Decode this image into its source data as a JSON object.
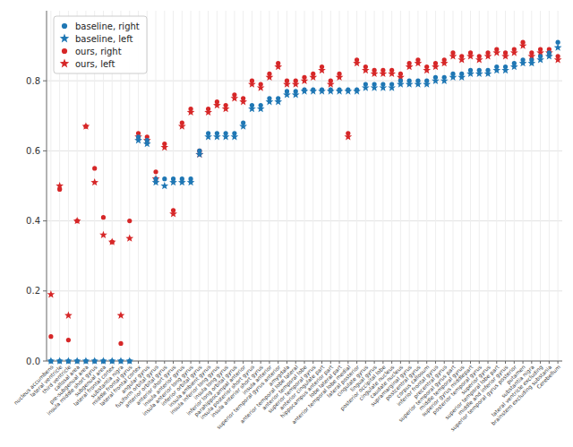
{
  "chart_data": {
    "type": "scatter",
    "categories": [
      "nucleus accumbens",
      "lateral ventricle",
      "third ventricle",
      "callosal area",
      "pre-subgenual area",
      "insula middle short gyrus",
      "subgenual area",
      "lateral frontal cortex",
      "substantia nigra",
      "middle frontal gyrus",
      "lateral frontal cortex",
      "angular gyrus",
      "fusiform orbital gyrus",
      "anterior orbital gyrus",
      "anterior short gyrus",
      "insula anterior gyrus",
      "insula anterior long gyrus",
      "inferior orbital gyrus",
      "insula ambient gyrus",
      "insula inferior long gyrus",
      "insula long gyrus",
      "inferior long orbital gyrus",
      "parahippocampal anterior",
      "insula posterior short gyrus",
      "insula anterior short gyrus",
      "insula anterior",
      "superior temporal gyrus anterior",
      "amygdala",
      "anterior temporal lobe lateral",
      "anterior temporal lobe",
      "superior temporal gyrus",
      "anterior cingulate part",
      "hippocampus anterior part",
      "lobe lateral part",
      "anterior temporal lobe medial",
      "lateral posterior",
      "cingulate gyrus",
      "lingual gyrus",
      "posterior occipital lobe",
      "cingulate nucleus",
      "caudate nucleus",
      "supramarginal gyrus",
      "postcentral gyrus",
      "corpus callosum",
      "inferior frontal gyrus",
      "precentral gyrus",
      "superior temporal gyrus part",
      "middle temporal gyrus",
      "superior gyrus middlepart",
      "posterior temporal gyrus",
      "superior gyrus",
      "superior temporal lobe part",
      "middle and inferior gyrus",
      "superior temporal gyrus posterior",
      "putamen",
      "substantia nigra",
      "lateral ventricle excluding",
      "brainstem excluding substania",
      "Cerebellum"
    ],
    "series": [
      {
        "name": "baseline, right",
        "color": "#1f77b4",
        "marker": "circle",
        "values": [
          0.0,
          0.0,
          0.0,
          0.0,
          0.0,
          0.0,
          0.0,
          0.0,
          0.0,
          0.0,
          0.64,
          0.63,
          0.52,
          0.52,
          0.52,
          0.52,
          0.52,
          0.6,
          0.65,
          0.65,
          0.65,
          0.65,
          0.68,
          0.73,
          0.73,
          0.75,
          0.75,
          0.77,
          0.77,
          0.775,
          0.775,
          0.775,
          0.775,
          0.775,
          0.775,
          0.775,
          0.79,
          0.79,
          0.79,
          0.79,
          0.8,
          0.8,
          0.8,
          0.8,
          0.81,
          0.81,
          0.82,
          0.82,
          0.83,
          0.83,
          0.83,
          0.84,
          0.84,
          0.85,
          0.86,
          0.86,
          0.87,
          0.88,
          0.91
        ]
      },
      {
        "name": "baseline, left",
        "color": "#1f77b4",
        "marker": "star",
        "values": [
          0.0,
          0.0,
          0.0,
          0.0,
          0.0,
          0.0,
          0.0,
          0.0,
          0.0,
          0.0,
          0.63,
          0.62,
          0.51,
          0.5,
          0.51,
          0.51,
          0.51,
          0.59,
          0.64,
          0.64,
          0.64,
          0.64,
          0.67,
          0.72,
          0.72,
          0.74,
          0.74,
          0.76,
          0.76,
          0.77,
          0.77,
          0.77,
          0.77,
          0.77,
          0.77,
          0.77,
          0.78,
          0.78,
          0.78,
          0.78,
          0.79,
          0.79,
          0.79,
          0.79,
          0.8,
          0.8,
          0.81,
          0.81,
          0.82,
          0.82,
          0.82,
          0.83,
          0.83,
          0.84,
          0.85,
          0.85,
          0.86,
          0.87,
          0.895
        ]
      },
      {
        "name": "ours, right",
        "color": "#d62728",
        "marker": "circle",
        "values": [
          0.07,
          0.49,
          0.06,
          0.4,
          0.67,
          0.55,
          0.41,
          0.34,
          0.05,
          0.4,
          0.65,
          0.64,
          0.54,
          0.62,
          0.43,
          0.68,
          0.72,
          0.6,
          0.72,
          0.74,
          0.73,
          0.76,
          0.75,
          0.8,
          0.79,
          0.82,
          0.85,
          0.8,
          0.8,
          0.81,
          0.82,
          0.84,
          0.8,
          0.82,
          0.65,
          0.86,
          0.84,
          0.83,
          0.83,
          0.83,
          0.82,
          0.85,
          0.86,
          0.84,
          0.85,
          0.86,
          0.88,
          0.87,
          0.88,
          0.87,
          0.88,
          0.89,
          0.88,
          0.89,
          0.91,
          0.88,
          0.89,
          0.89,
          0.87
        ]
      },
      {
        "name": "ours, left",
        "color": "#d62728",
        "marker": "star",
        "values": [
          0.19,
          0.5,
          0.13,
          0.4,
          0.67,
          0.51,
          0.36,
          0.34,
          0.13,
          0.35,
          0.64,
          0.63,
          0.52,
          0.61,
          0.42,
          0.67,
          0.71,
          0.59,
          0.71,
          0.73,
          0.72,
          0.75,
          0.74,
          0.79,
          0.78,
          0.81,
          0.84,
          0.79,
          0.79,
          0.8,
          0.81,
          0.83,
          0.79,
          0.81,
          0.64,
          0.85,
          0.83,
          0.82,
          0.82,
          0.82,
          0.81,
          0.84,
          0.85,
          0.83,
          0.84,
          0.85,
          0.87,
          0.86,
          0.87,
          0.86,
          0.87,
          0.88,
          0.87,
          0.88,
          0.9,
          0.87,
          0.88,
          0.88,
          0.86
        ]
      }
    ],
    "ylim": [
      0.0,
      1.0
    ],
    "yticks": [
      {
        "value": 0.0,
        "label": "0.0"
      },
      0.2,
      0.4,
      0.6,
      0.8
    ],
    "grid": true,
    "legend": "upper left"
  }
}
